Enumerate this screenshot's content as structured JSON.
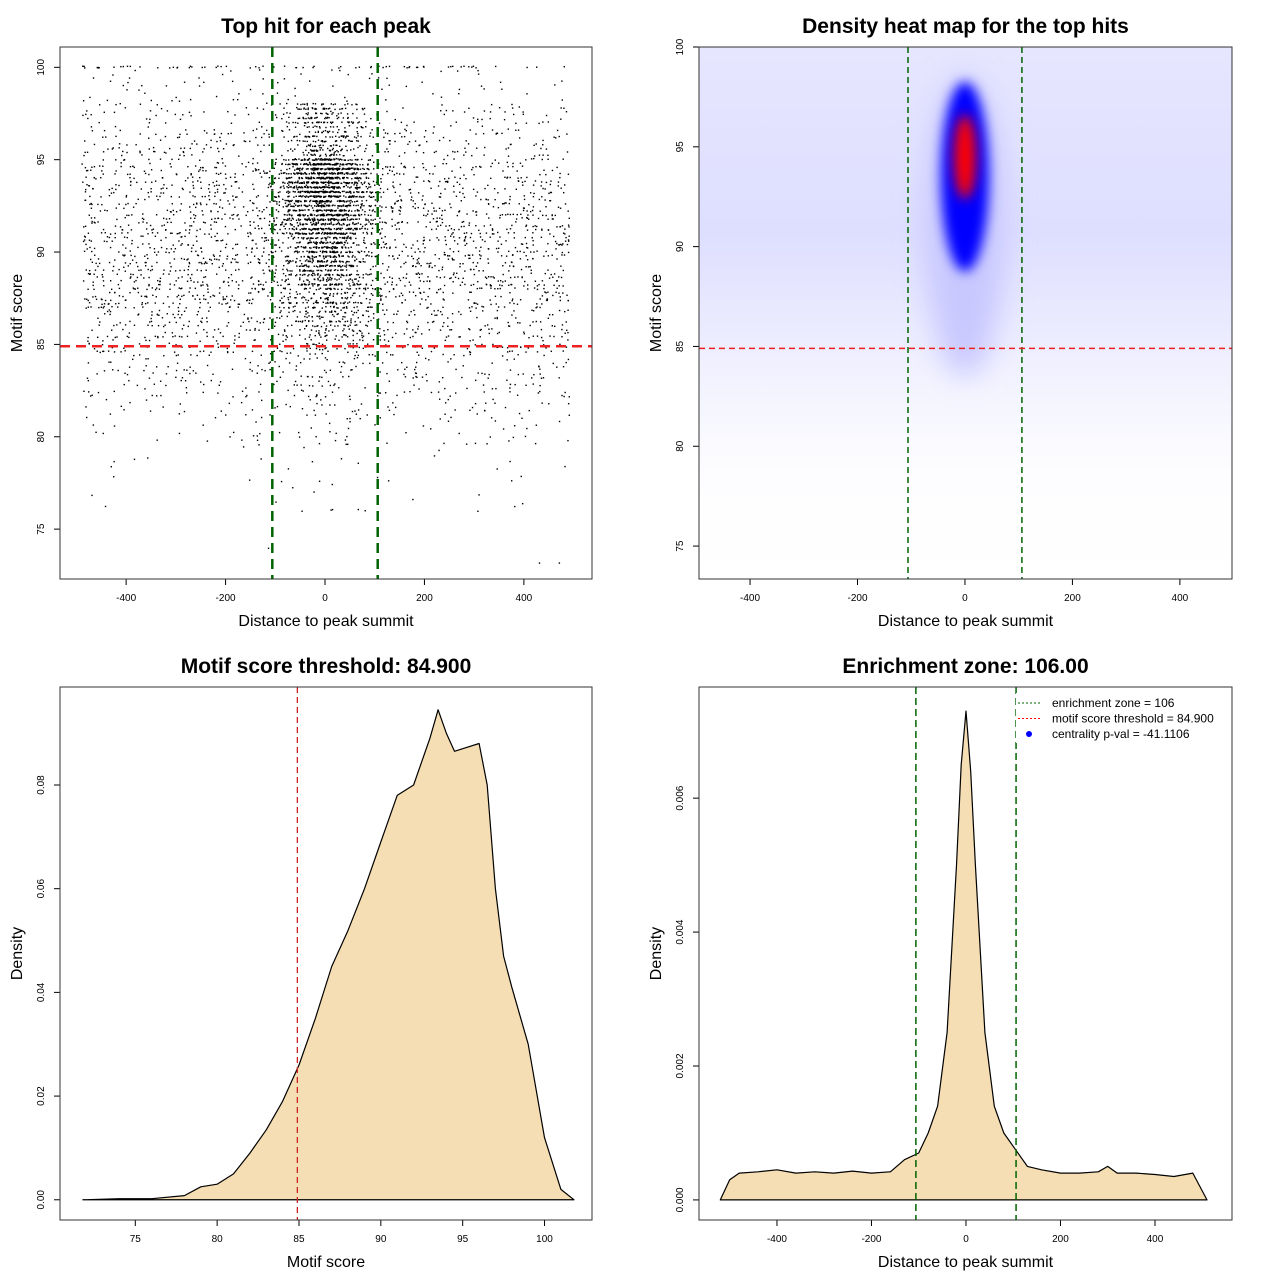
{
  "chart_data": [
    {
      "type": "scatter",
      "title": "Top hit for each peak",
      "xlabel": "Distance to peak summit",
      "ylabel": "Motif score",
      "xlim": [
        -533,
        537
      ],
      "ylim": [
        72.3,
        101.1
      ],
      "xticks": [
        -400,
        -200,
        0,
        200,
        400
      ],
      "yticks": [
        75,
        80,
        85,
        90,
        95,
        100
      ],
      "vlines": [
        -106,
        106
      ],
      "hline": 84.9,
      "points_model": {
        "n_background": 3200,
        "n_central": 2600,
        "x_range": [
          -490,
          490
        ],
        "central_sd": 45,
        "y_range": [
          73,
          100
        ]
      }
    },
    {
      "type": "heatmap",
      "title": "Density heat map for the top hits",
      "xlabel": "Distance to peak summit",
      "ylabel": "Motif score",
      "xlim": [
        -495,
        497
      ],
      "ylim": [
        73.35,
        100
      ],
      "xticks": [
        -400,
        -200,
        0,
        200,
        400
      ],
      "yticks": [
        75,
        80,
        85,
        90,
        95,
        100
      ],
      "vlines": [
        -106,
        106
      ],
      "hline": 84.9,
      "hotspot": {
        "x": 0,
        "y": 94.5
      },
      "colors": [
        "#ffffff",
        "#0000ff",
        "#ff0000"
      ]
    },
    {
      "type": "area",
      "title": "Motif score threshold: 84.900",
      "xlabel": "Motif score",
      "ylabel": "Density",
      "xlim": [
        70.4,
        102.9
      ],
      "ylim": [
        -0.0039,
        0.0989
      ],
      "xticks": [
        75,
        80,
        85,
        90,
        95,
        100
      ],
      "yticks": [
        0.0,
        0.02,
        0.04,
        0.06,
        0.08
      ],
      "ytick_labels": [
        "0.00",
        "0.02",
        "0.04",
        "0.06",
        "0.08"
      ],
      "vline": 84.9,
      "x": [
        71.8,
        74,
        76,
        78,
        79,
        80,
        81,
        82,
        83,
        84,
        85,
        86,
        87,
        88,
        89,
        90,
        91,
        92,
        93,
        93.5,
        94,
        94.5,
        95,
        96,
        96.5,
        97,
        97.5,
        98,
        99,
        100,
        101,
        101.8
      ],
      "y": [
        0,
        0.0002,
        0.0002,
        0.0008,
        0.0025,
        0.003,
        0.005,
        0.009,
        0.0135,
        0.019,
        0.026,
        0.035,
        0.045,
        0.052,
        0.06,
        0.069,
        0.078,
        0.08,
        0.089,
        0.0945,
        0.09,
        0.0865,
        0.087,
        0.088,
        0.08,
        0.06,
        0.047,
        0.041,
        0.03,
        0.012,
        0.002,
        0
      ]
    },
    {
      "type": "area",
      "title": "Enrichment zone: 106.00",
      "xlabel": "Distance to peak summit",
      "ylabel": "Density",
      "xlim": [
        -565,
        563
      ],
      "ylim": [
        -0.0003,
        0.00766
      ],
      "xticks": [
        -400,
        -200,
        0,
        200,
        400
      ],
      "yticks": [
        0,
        0.002,
        0.004,
        0.006
      ],
      "ytick_labels": [
        "0.000",
        "0.002",
        "0.004",
        "0.006"
      ],
      "vlines": [
        -106,
        106
      ],
      "x": [
        -520,
        -500,
        -480,
        -440,
        -400,
        -360,
        -320,
        -280,
        -240,
        -200,
        -160,
        -130,
        -100,
        -80,
        -60,
        -40,
        -20,
        -10,
        0,
        10,
        20,
        40,
        60,
        80,
        100,
        130,
        160,
        200,
        240,
        280,
        300,
        320,
        360,
        400,
        440,
        480,
        495,
        510
      ],
      "y": [
        0,
        0.0003,
        0.0004,
        0.00042,
        0.00045,
        0.0004,
        0.00042,
        0.0004,
        0.00043,
        0.0004,
        0.00042,
        0.0006,
        0.0007,
        0.001,
        0.0014,
        0.0025,
        0.005,
        0.0065,
        0.0073,
        0.0064,
        0.005,
        0.0025,
        0.0014,
        0.001,
        0.0008,
        0.0005,
        0.00045,
        0.0004,
        0.0004,
        0.00042,
        0.0005,
        0.0004,
        0.0004,
        0.00038,
        0.00035,
        0.0004,
        0.0002,
        0
      ],
      "legend": [
        {
          "label": "enrichment zone = 106",
          "color": "#006400",
          "style": "dotted"
        },
        {
          "label": "motif score threshold = 84.900",
          "color": "#ff0000",
          "style": "dotted"
        },
        {
          "label": "centrality p-val = -41.1106",
          "color": "#0000ff",
          "style": "point"
        }
      ],
      "legend_position": "top-right"
    }
  ],
  "colors": {
    "fill": "#f5deb3",
    "green": "#006400",
    "red": "#ee2222"
  }
}
